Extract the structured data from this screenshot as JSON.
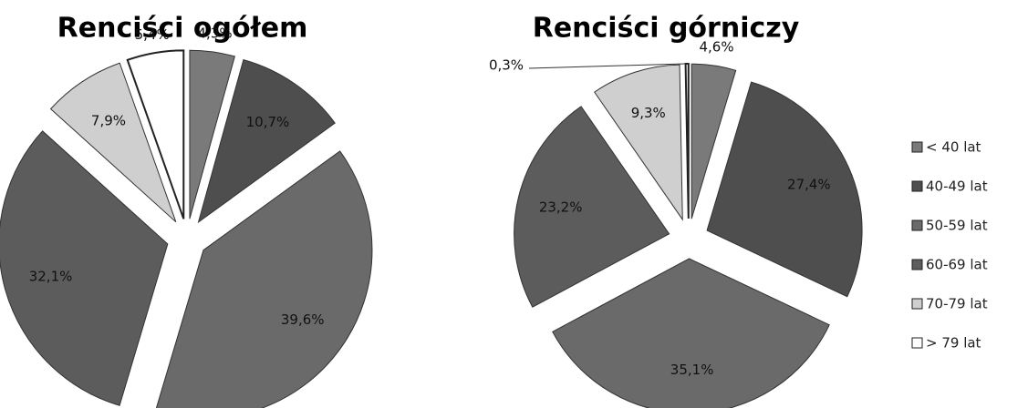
{
  "chart_data": [
    {
      "type": "pie",
      "title": "Renciści ogółem",
      "values": [
        4.3,
        10.7,
        39.6,
        32.1,
        7.9,
        5.4
      ],
      "value_labels": [
        "4,3%",
        "10,7%",
        "39,6%",
        "32,1%",
        "7,9%",
        "5,4%"
      ]
    },
    {
      "type": "pie",
      "title": "Renciści górniczy",
      "values": [
        4.6,
        27.4,
        35.1,
        23.2,
        9.3,
        0.3
      ],
      "value_labels": [
        "4,6%",
        "27,4%",
        "35,1%",
        "23,2%",
        "9,3%",
        "0,3%"
      ]
    }
  ],
  "legend": {
    "labels": [
      "< 40 lat",
      "40-49 lat",
      "50-59 lat",
      "60-69 lat",
      "70-79 lat",
      "> 79 lat"
    ],
    "colors": [
      "#7a7a7a",
      "#4e4e4e",
      "#6a6a6a",
      "#5c5c5c",
      "#cfcfcf",
      "#ffffff"
    ]
  }
}
